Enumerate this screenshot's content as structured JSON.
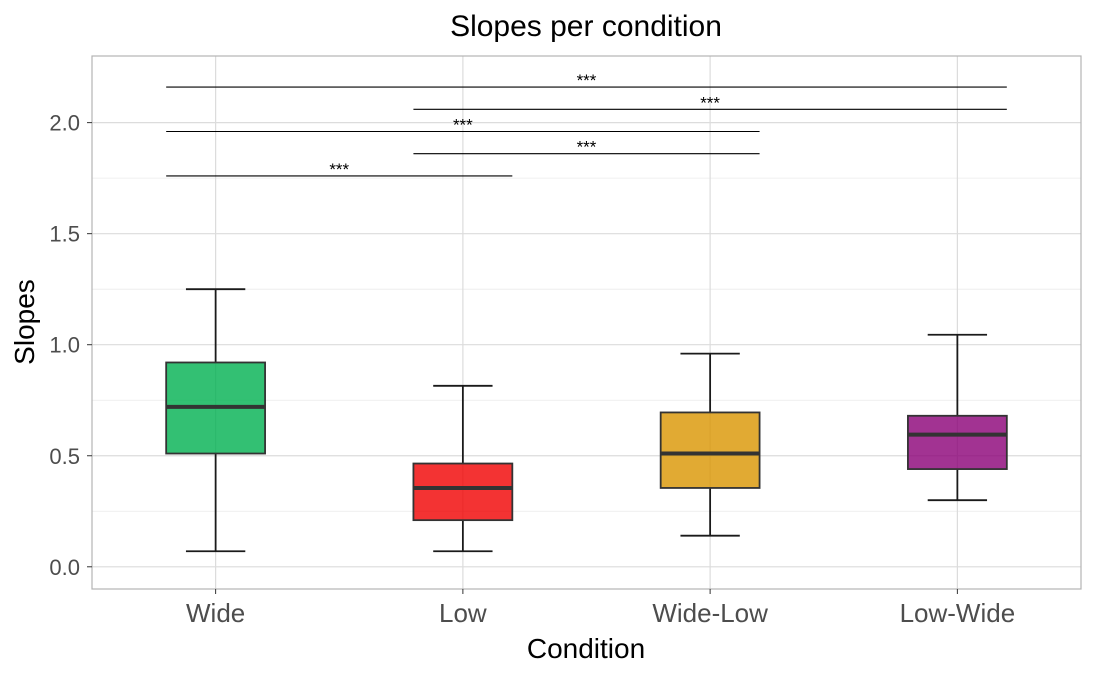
{
  "chart_data": {
    "type": "box",
    "title": "Slopes per condition",
    "xlabel": "Condition",
    "ylabel": "Slopes",
    "ylim": [
      -0.1,
      2.3
    ],
    "yticks": [
      0.0,
      0.5,
      1.0,
      1.5,
      2.0
    ],
    "ytick_labels": [
      "0.0",
      "0.5",
      "1.0",
      "1.5",
      "2.0"
    ],
    "grid": true,
    "categories": [
      "Wide",
      "Low",
      "Wide-Low",
      "Low-Wide"
    ],
    "boxes": [
      {
        "category": "Wide",
        "whisker_low": 0.07,
        "q1": 0.51,
        "median": 0.72,
        "q3": 0.92,
        "whisker_high": 1.25,
        "color": "#00B050"
      },
      {
        "category": "Low",
        "whisker_low": 0.07,
        "q1": 0.21,
        "median": 0.355,
        "q3": 0.465,
        "whisker_high": 0.815,
        "color": "#F00000"
      },
      {
        "category": "Wide-Low",
        "whisker_low": 0.14,
        "q1": 0.355,
        "median": 0.51,
        "q3": 0.695,
        "whisker_high": 0.96,
        "color": "#DA9500"
      },
      {
        "category": "Low-Wide",
        "whisker_low": 0.3,
        "q1": 0.44,
        "median": 0.595,
        "q3": 0.68,
        "whisker_high": 1.045,
        "color": "#8B0077"
      }
    ],
    "significance": [
      {
        "from": "Wide",
        "to": "Low-Wide",
        "y": 2.16,
        "label": "***"
      },
      {
        "from": "Low",
        "to": "Low-Wide",
        "y": 2.06,
        "label": "***"
      },
      {
        "from": "Wide",
        "to": "Wide-Low",
        "y": 1.96,
        "label": "***"
      },
      {
        "from": "Low",
        "to": "Wide-Low",
        "y": 1.86,
        "label": "***"
      },
      {
        "from": "Wide",
        "to": "Low",
        "y": 1.76,
        "label": "***"
      }
    ]
  }
}
